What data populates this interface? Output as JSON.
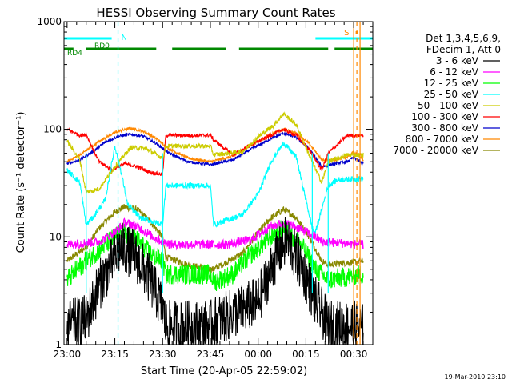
{
  "chart_data": {
    "type": "line",
    "title": "HESSI Observing Summary Count Rates",
    "xlabel": "Start Time (20-Apr-05 22:59:02)",
    "ylabel": "Count Rate (s⁻¹ detector⁻¹)",
    "ylog": true,
    "ylim": [
      1,
      1000
    ],
    "xlim": [
      "22:59:02",
      "00:36:00"
    ],
    "x_ticks": [
      "23:00",
      "23:15",
      "23:30",
      "23:45",
      "00:00",
      "00:15",
      "00:30"
    ],
    "y_ticks": [
      "1",
      "10",
      "100",
      "1000"
    ],
    "x_minor_step_minutes": 3,
    "legend_header": [
      "Det 1,3,4,5,6,9,",
      "FDecim 1, Att 0"
    ],
    "legend_position": "right",
    "footer_date": "19-Mar-2010 23:10",
    "series": [
      {
        "name": "3 - 6 keV",
        "color": "#000000",
        "x": [
          "23:00",
          "23:06",
          "23:10",
          "23:15",
          "23:17",
          "23:21",
          "23:26",
          "23:30",
          "23:31",
          "23:45",
          "23:46",
          "00:00",
          "00:05",
          "00:09",
          "00:14",
          "00:18",
          "00:20",
          "00:22",
          "00:30",
          "00:33"
        ],
        "y": [
          1.5,
          1.7,
          3.5,
          6.5,
          8,
          7,
          4,
          2.2,
          1.5,
          1.5,
          1.6,
          2.5,
          6,
          9.5,
          5,
          2.5,
          2,
          1.5,
          1.5,
          1.4
        ]
      },
      {
        "name": "6 - 12 keV",
        "color": "#ff00ff",
        "x": [
          "23:00",
          "23:10",
          "23:15",
          "23:18",
          "23:21",
          "23:27",
          "23:30",
          "23:33",
          "23:45",
          "23:50",
          "23:58",
          "00:04",
          "00:08",
          "00:13",
          "00:18",
          "00:20",
          "00:33"
        ],
        "y": [
          8.5,
          9,
          11,
          13.5,
          13,
          10,
          9,
          8.5,
          8.5,
          8.5,
          9.5,
          12.5,
          13.5,
          12,
          10,
          9,
          8.5
        ]
      },
      {
        "name": "12 - 25 keV",
        "color": "#00ff00",
        "x": [
          "23:00",
          "23:06",
          "23:11",
          "23:15",
          "23:17",
          "23:21",
          "23:26",
          "23:30",
          "23:31",
          "23:45",
          "23:46",
          "23:52",
          "23:58",
          "00:04",
          "00:08",
          "00:13",
          "00:18",
          "00:22",
          "00:33"
        ],
        "y": [
          4,
          6,
          8,
          10,
          11,
          10,
          7,
          6,
          4.5,
          4.5,
          3.8,
          4.5,
          7,
          10,
          12,
          9,
          5,
          4,
          4.5
        ]
      },
      {
        "name": "25 - 50 keV",
        "color": "#00ffff",
        "x": [
          "23:00",
          "23:04",
          "23:06",
          "23:08",
          "23:12",
          "23:15",
          "23:17",
          "23:19",
          "23:23",
          "23:30",
          "23:31",
          "23:45",
          "23:46",
          "23:55",
          "00:00",
          "00:04",
          "00:08",
          "00:12",
          "00:17",
          "00:18",
          "00:22",
          "00:25",
          "00:33"
        ],
        "y": [
          42,
          32,
          13,
          15,
          22,
          70,
          40,
          20,
          15,
          13,
          30,
          30,
          13,
          16,
          25,
          50,
          75,
          55,
          12,
          11,
          30,
          34,
          35
        ]
      },
      {
        "name": "50 - 100 keV",
        "color": "#cccc00",
        "x": [
          "23:00",
          "23:04",
          "23:06",
          "23:10",
          "23:15",
          "23:20",
          "23:25",
          "23:30",
          "23:31",
          "23:38",
          "23:45",
          "23:46",
          "23:55",
          "00:00",
          "00:05",
          "00:08",
          "00:12",
          "00:16",
          "00:20",
          "00:22",
          "00:28",
          "00:33"
        ],
        "y": [
          78,
          52,
          26,
          28,
          45,
          68,
          66,
          54,
          70,
          70,
          70,
          58,
          62,
          85,
          110,
          140,
          110,
          58,
          32,
          50,
          58,
          58
        ]
      },
      {
        "name": "100 - 300 keV",
        "color": "#ff0000",
        "x": [
          "23:00",
          "23:04",
          "23:06",
          "23:10",
          "23:14",
          "23:18",
          "23:22",
          "23:26",
          "23:30",
          "23:31",
          "23:45",
          "23:46",
          "23:52",
          "23:58",
          "00:04",
          "00:08",
          "00:12",
          "00:16",
          "00:20",
          "00:22",
          "00:28",
          "00:33"
        ],
        "y": [
          100,
          88,
          90,
          50,
          42,
          48,
          45,
          40,
          38,
          88,
          88,
          80,
          58,
          72,
          88,
          100,
          88,
          65,
          42,
          60,
          88,
          88
        ]
      },
      {
        "name": "300 - 800 keV",
        "color": "#0000cc",
        "x": [
          "23:00",
          "23:04",
          "23:08",
          "23:12",
          "23:16",
          "23:20",
          "23:24",
          "23:28",
          "23:32",
          "23:38",
          "23:45",
          "23:52",
          "23:58",
          "00:04",
          "00:08",
          "00:12",
          "00:16",
          "00:20",
          "00:24",
          "00:28",
          "00:30",
          "00:33"
        ],
        "y": [
          48,
          52,
          62,
          76,
          86,
          90,
          86,
          74,
          60,
          50,
          47,
          52,
          66,
          82,
          92,
          84,
          66,
          45,
          48,
          50,
          55,
          48
        ]
      },
      {
        "name": "800 - 7000 keV",
        "color": "#ff8800",
        "x": [
          "23:00",
          "23:04",
          "23:08",
          "23:12",
          "23:16",
          "23:20",
          "23:24",
          "23:28",
          "23:32",
          "23:38",
          "23:45",
          "23:52",
          "23:58",
          "00:04",
          "00:08",
          "00:12",
          "00:16",
          "00:20",
          "00:24",
          "00:28",
          "00:30",
          "00:33"
        ],
        "y": [
          50,
          58,
          70,
          84,
          96,
          102,
          96,
          82,
          66,
          54,
          50,
          56,
          72,
          90,
          100,
          92,
          74,
          52,
          52,
          55,
          62,
          52
        ]
      },
      {
        "name": "7000 - 20000 keV",
        "color": "#888800",
        "x": [
          "23:00",
          "23:06",
          "23:10",
          "23:15",
          "23:18",
          "23:22",
          "23:26",
          "23:30",
          "23:31",
          "23:38",
          "23:45",
          "23:46",
          "23:55",
          "00:00",
          "00:04",
          "00:08",
          "00:12",
          "00:16",
          "00:20",
          "00:22",
          "00:33"
        ],
        "y": [
          6,
          8,
          12,
          17,
          19,
          18,
          14,
          10,
          6.5,
          5.5,
          5,
          5,
          7,
          11,
          15,
          18,
          15,
          10,
          6,
          5.5,
          6
        ]
      }
    ],
    "annotations": {
      "rd0_label": "RD0",
      "rd4_label": "RD4",
      "n_label": "N",
      "s_label": "S",
      "rd0_segments": [
        [
          "22:59:02",
          "23:14"
        ],
        [
          "00:18",
          "00:36"
        ]
      ],
      "rd4_segments": [
        [
          "22:59:02",
          "23:02"
        ],
        [
          "23:06",
          "23:28"
        ],
        [
          "23:33",
          "23:50"
        ],
        [
          "23:54",
          "00:22"
        ],
        [
          "00:24",
          "00:36"
        ]
      ],
      "n_line": "23:16",
      "s_lines": [
        "00:30",
        "00:31",
        "00:32"
      ],
      "cyan_boundaries": [
        "23:06",
        "23:30",
        "00:17",
        "00:22"
      ],
      "colors": {
        "cyan": "#00ffff",
        "green": "#008800",
        "orange": "#ff8800"
      }
    }
  }
}
